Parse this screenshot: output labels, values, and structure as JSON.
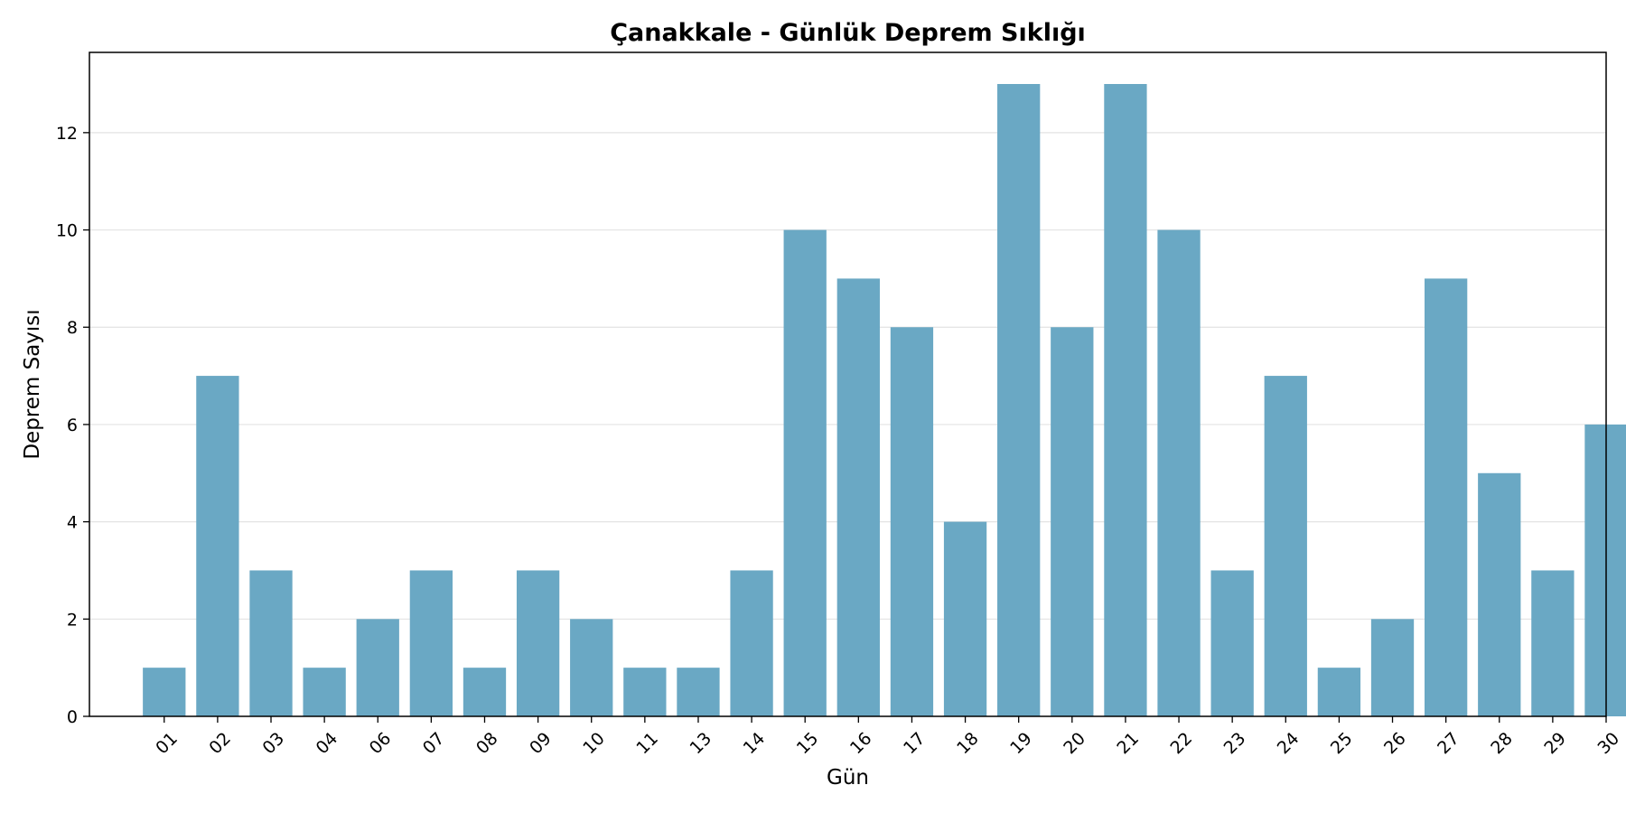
{
  "chart_data": {
    "type": "bar",
    "title": "Çanakkale - Günlük Deprem Sıklığı",
    "xlabel": "Gün",
    "ylabel": "Deprem Sayısı",
    "categories": [
      "01",
      "02",
      "03",
      "04",
      "06",
      "07",
      "08",
      "09",
      "10",
      "11",
      "13",
      "14",
      "15",
      "16",
      "17",
      "18",
      "19",
      "20",
      "21",
      "22",
      "23",
      "24",
      "25",
      "26",
      "27",
      "28",
      "29",
      "30"
    ],
    "values": [
      1,
      7,
      3,
      1,
      2,
      3,
      1,
      3,
      2,
      1,
      1,
      3,
      10,
      9,
      8,
      4,
      13,
      8,
      13,
      10,
      3,
      7,
      1,
      2,
      9,
      5,
      3,
      6
    ],
    "ylim": [
      0,
      13.65
    ],
    "yticks": [
      0,
      2,
      4,
      6,
      8,
      10,
      12
    ],
    "grid": "y",
    "bar_color": "#6aa8c4",
    "legend": "none"
  }
}
